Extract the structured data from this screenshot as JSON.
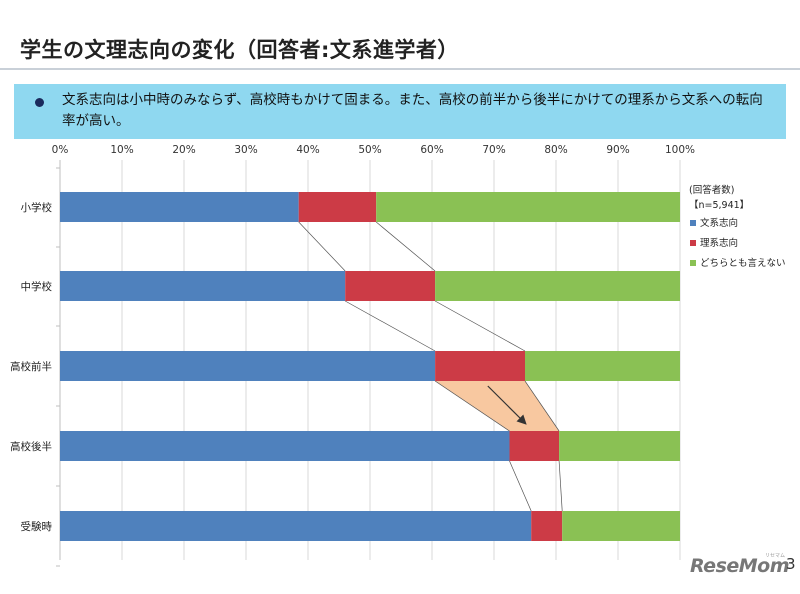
{
  "title": "学生の文理志向の変化（回答者:文系進学者）",
  "summary": "文系志向は小中時のみならず、高校時もかけて固まる。また、高校の前半から後半にかけての理系から文系への転向率が高い。",
  "respondents_label": "(回答者数)",
  "respondents_n": "【n=5,941】",
  "logo": "ReseMom",
  "logo_ruby": "リセマム",
  "page_number": "3",
  "colors": {
    "bunkei": "#4f81bd",
    "rikei": "#cc3b46",
    "neither": "#8ac154",
    "highlight": "#f8c8a0"
  },
  "chart_data": {
    "type": "stacked-bar-horizontal",
    "x_tick_labels": [
      "0%",
      "10%",
      "20%",
      "30%",
      "40%",
      "50%",
      "60%",
      "70%",
      "80%",
      "90%",
      "100%"
    ],
    "xlim": [
      0,
      100
    ],
    "categories": [
      "小学校",
      "中学校",
      "高校前半",
      "高校後半",
      "受験時"
    ],
    "series": [
      {
        "name": "文系志向",
        "values": [
          38.5,
          46,
          60.5,
          72.5,
          76
        ]
      },
      {
        "name": "理系志向",
        "values": [
          12.5,
          14.5,
          14.5,
          8,
          5
        ]
      },
      {
        "name": "どちらとも言えない",
        "values": [
          49,
          39.5,
          25,
          19.5,
          19
        ]
      }
    ],
    "legend_position": "right"
  }
}
